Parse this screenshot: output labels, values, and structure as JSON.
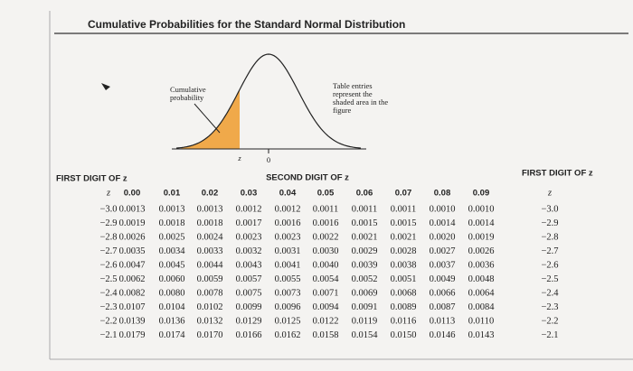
{
  "title": "Cumulative Probabilities for the Standard Normal Distribution",
  "figure": {
    "left_label": "Cumulative probability",
    "right_label": "Table entries represent the shaded area in the figure",
    "z_label": "z",
    "zero_label": "0"
  },
  "table": {
    "first_digit_label": "FIRST DIGIT OF z",
    "second_digit_label": "SECOND DIGIT OF z",
    "header": [
      "z",
      "0.00",
      "0.01",
      "0.02",
      "0.03",
      "0.04",
      "0.05",
      "0.06",
      "0.07",
      "0.08",
      "0.09"
    ],
    "rows": [
      {
        "z": "−3.0",
        "values": [
          "0.0013",
          "0.0013",
          "0.0013",
          "0.0012",
          "0.0012",
          "0.0011",
          "0.0011",
          "0.0011",
          "0.0010",
          "0.0010"
        ]
      },
      {
        "z": "−2.9",
        "values": [
          "0.0019",
          "0.0018",
          "0.0018",
          "0.0017",
          "0.0016",
          "0.0016",
          "0.0015",
          "0.0015",
          "0.0014",
          "0.0014"
        ]
      },
      {
        "z": "−2.8",
        "values": [
          "0.0026",
          "0.0025",
          "0.0024",
          "0.0023",
          "0.0023",
          "0.0022",
          "0.0021",
          "0.0021",
          "0.0020",
          "0.0019"
        ]
      },
      {
        "z": "−2.7",
        "values": [
          "0.0035",
          "0.0034",
          "0.0033",
          "0.0032",
          "0.0031",
          "0.0030",
          "0.0029",
          "0.0028",
          "0.0027",
          "0.0026"
        ]
      },
      {
        "z": "−2.6",
        "values": [
          "0.0047",
          "0.0045",
          "0.0044",
          "0.0043",
          "0.0041",
          "0.0040",
          "0.0039",
          "0.0038",
          "0.0037",
          "0.0036"
        ]
      },
      {
        "z": "−2.5",
        "values": [
          "0.0062",
          "0.0060",
          "0.0059",
          "0.0057",
          "0.0055",
          "0.0054",
          "0.0052",
          "0.0051",
          "0.0049",
          "0.0048"
        ]
      },
      {
        "z": "−2.4",
        "values": [
          "0.0082",
          "0.0080",
          "0.0078",
          "0.0075",
          "0.0073",
          "0.0071",
          "0.0069",
          "0.0068",
          "0.0066",
          "0.0064"
        ]
      },
      {
        "z": "−2.3",
        "values": [
          "0.0107",
          "0.0104",
          "0.0102",
          "0.0099",
          "0.0096",
          "0.0094",
          "0.0091",
          "0.0089",
          "0.0087",
          "0.0084"
        ]
      },
      {
        "z": "−2.2",
        "values": [
          "0.0139",
          "0.0136",
          "0.0132",
          "0.0129",
          "0.0125",
          "0.0122",
          "0.0119",
          "0.0116",
          "0.0113",
          "0.0110"
        ]
      },
      {
        "z": "−2.1",
        "values": [
          "0.0179",
          "0.0174",
          "0.0170",
          "0.0166",
          "0.0162",
          "0.0158",
          "0.0154",
          "0.0150",
          "0.0146",
          "0.0143"
        ]
      }
    ]
  }
}
